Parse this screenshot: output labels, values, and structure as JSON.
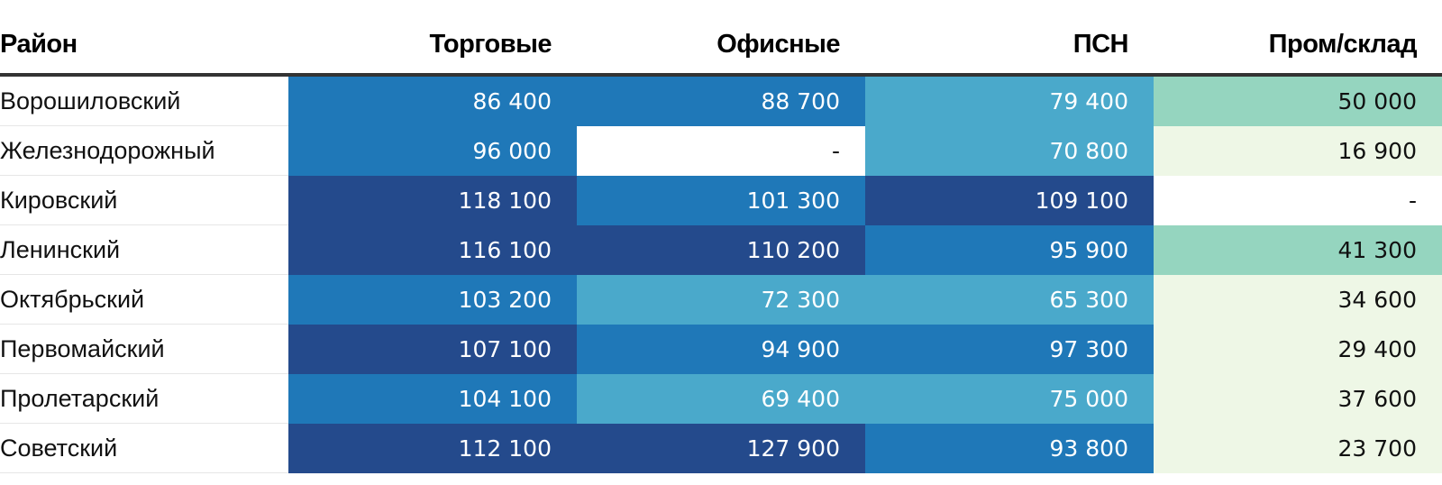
{
  "chart_data": {
    "type": "table",
    "columns": [
      "Район",
      "Торговые",
      "Офисные",
      "ПСН",
      "Пром/склад"
    ],
    "rows": [
      {
        "name": "Ворошиловский",
        "values": [
          "86 400",
          "88 700",
          "79 400",
          "50 000"
        ],
        "numeric": [
          86400,
          88700,
          79400,
          50000
        ]
      },
      {
        "name": "Железнодорожный",
        "values": [
          "96 000",
          "-",
          "70 800",
          "16 900"
        ],
        "numeric": [
          96000,
          null,
          70800,
          16900
        ]
      },
      {
        "name": "Кировский",
        "values": [
          "118 100",
          "101 300",
          "109 100",
          "-"
        ],
        "numeric": [
          118100,
          101300,
          109100,
          null
        ]
      },
      {
        "name": "Ленинский",
        "values": [
          "116 100",
          "110 200",
          "95 900",
          "41 300"
        ],
        "numeric": [
          116100,
          110200,
          95900,
          41300
        ]
      },
      {
        "name": "Октябрьский",
        "values": [
          "103 200",
          "72 300",
          "65 300",
          "34 600"
        ],
        "numeric": [
          103200,
          72300,
          65300,
          34600
        ]
      },
      {
        "name": "Первомайский",
        "values": [
          "107 100",
          "94 900",
          "97 300",
          "29 400"
        ],
        "numeric": [
          107100,
          94900,
          97300,
          29400
        ]
      },
      {
        "name": "Пролетарский",
        "values": [
          "104 100",
          "69 400",
          "75 000",
          "37 600"
        ],
        "numeric": [
          104100,
          69400,
          75000,
          37600
        ]
      },
      {
        "name": "Советский",
        "values": [
          "112 100",
          "127 900",
          "93 800",
          "23 700"
        ],
        "numeric": [
          112100,
          127900,
          93800,
          23700
        ]
      }
    ],
    "color_scale": [
      {
        "max": 40000,
        "bg": "#eef7e6",
        "fg": "#111111"
      },
      {
        "max": 60000,
        "bg": "#95d5bf",
        "fg": "#111111"
      },
      {
        "max": 80000,
        "bg": "#4aa9cb",
        "fg": "#ffffff"
      },
      {
        "max": 105000,
        "bg": "#1f78b8",
        "fg": "#ffffff"
      },
      {
        "max": 1000000,
        "bg": "#244a8c",
        "fg": "#ffffff"
      }
    ],
    "empty_color": "#ffffff"
  }
}
